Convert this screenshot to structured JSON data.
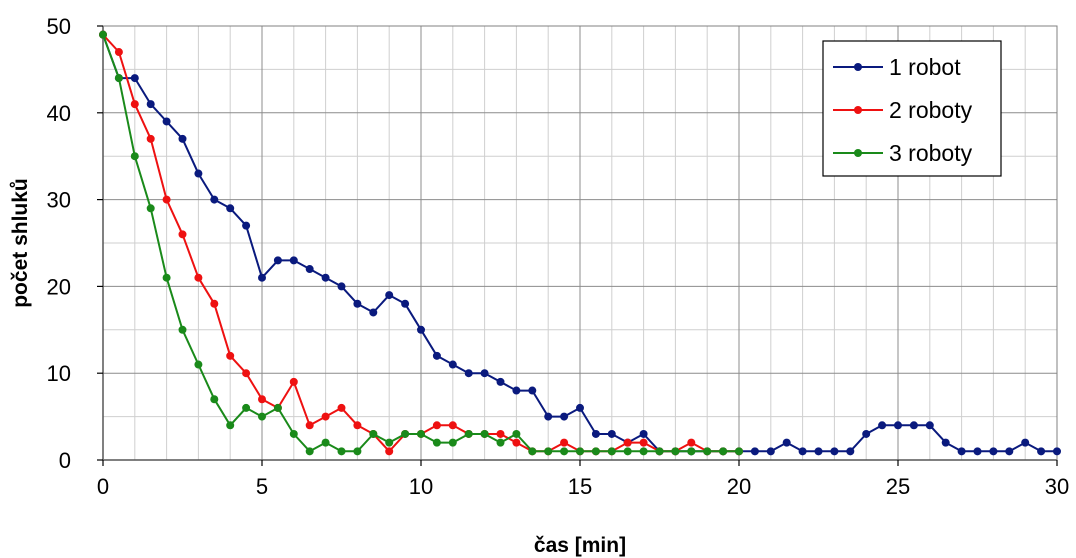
{
  "chart_data": {
    "type": "line",
    "xlabel": "čas [min]",
    "ylabel": "počet shluků",
    "xlim": [
      0,
      30
    ],
    "ylim": [
      0,
      50
    ],
    "xticks": [
      0,
      5,
      10,
      15,
      20,
      25,
      30
    ],
    "yticks": [
      0,
      10,
      20,
      30,
      40,
      50
    ],
    "grid": true,
    "legend_position": "top-right",
    "series": [
      {
        "name": "1 robot",
        "color": "#0a1a7e",
        "x": [
          0,
          0.5,
          1,
          1.5,
          2,
          2.5,
          3,
          3.5,
          4,
          4.5,
          5,
          5.5,
          6,
          6.5,
          7,
          7.5,
          8,
          8.5,
          9,
          9.5,
          10,
          10.5,
          11,
          11.5,
          12,
          12.5,
          13,
          13.5,
          14,
          14.5,
          15,
          15.5,
          16,
          16.5,
          17,
          17.5,
          18,
          18.5,
          19,
          19.5,
          20,
          20.5,
          21,
          21.5,
          22,
          22.5,
          23,
          23.5,
          24,
          24.5,
          25,
          25.5,
          26,
          26.5,
          27,
          27.5,
          28,
          28.5,
          29,
          29.5,
          30
        ],
        "y": [
          49,
          44,
          44,
          41,
          39,
          37,
          33,
          30,
          29,
          27,
          21,
          23,
          23,
          22,
          21,
          20,
          18,
          17,
          19,
          18,
          15,
          12,
          11,
          10,
          10,
          9,
          8,
          8,
          5,
          5,
          6,
          3,
          3,
          2,
          3,
          1,
          1,
          1,
          1,
          1,
          1,
          1,
          1,
          2,
          1,
          1,
          1,
          1,
          3,
          4,
          4,
          4,
          4,
          2,
          1,
          1,
          1,
          1,
          2,
          1,
          1
        ]
      },
      {
        "name": "2 roboty",
        "color": "#ee1111",
        "x": [
          0,
          0.5,
          1,
          1.5,
          2,
          2.5,
          3,
          3.5,
          4,
          4.5,
          5,
          5.5,
          6,
          6.5,
          7,
          7.5,
          8,
          8.5,
          9,
          9.5,
          10,
          10.5,
          11,
          11.5,
          12,
          12.5,
          13,
          13.5,
          14,
          14.5,
          15,
          15.5,
          16,
          16.5,
          17,
          17.5,
          18,
          18.5,
          19,
          19.5,
          20
        ],
        "y": [
          49,
          47,
          41,
          37,
          30,
          26,
          21,
          18,
          12,
          10,
          7,
          6,
          9,
          4,
          5,
          6,
          4,
          3,
          1,
          3,
          3,
          4,
          4,
          3,
          3,
          3,
          2,
          1,
          1,
          2,
          1,
          1,
          1,
          2,
          2,
          1,
          1,
          2,
          1,
          1,
          1
        ]
      },
      {
        "name": "3 roboty",
        "color": "#1a8a1a",
        "x": [
          0,
          0.5,
          1,
          1.5,
          2,
          2.5,
          3,
          3.5,
          4,
          4.5,
          5,
          5.5,
          6,
          6.5,
          7,
          7.5,
          8,
          8.5,
          9,
          9.5,
          10,
          10.5,
          11,
          11.5,
          12,
          12.5,
          13,
          13.5,
          14,
          14.5,
          15,
          15.5,
          16,
          16.5,
          17,
          17.5,
          18,
          18.5,
          19,
          19.5,
          20
        ],
        "y": [
          49,
          44,
          35,
          29,
          21,
          15,
          11,
          7,
          4,
          6,
          5,
          6,
          3,
          1,
          2,
          1,
          1,
          3,
          2,
          3,
          3,
          2,
          2,
          3,
          3,
          2,
          3,
          1,
          1,
          1,
          1,
          1,
          1,
          1,
          1,
          1,
          1,
          1,
          1,
          1,
          1
        ]
      }
    ]
  }
}
